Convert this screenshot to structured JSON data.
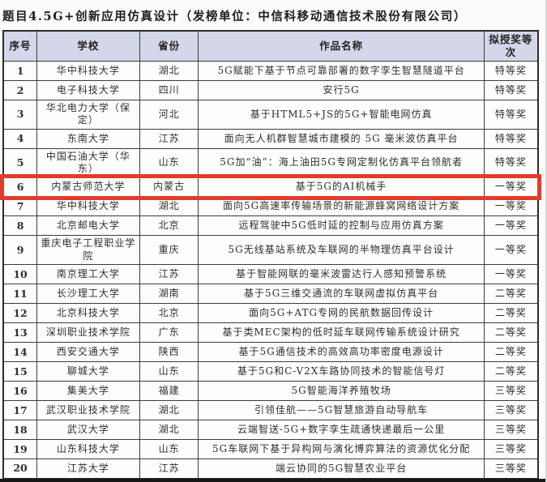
{
  "title": "题目4.5G+创新应用仿真设计（发榜单位：中信科移动通信技术股份有限公司）",
  "colors": {
    "header_bg": "#d3d7e9",
    "highlight_box": "#e23b2a"
  },
  "table": {
    "headers": [
      "序号",
      "学校",
      "省份",
      "作品名称",
      "拟授奖等次"
    ],
    "highlighted_row_no": "6",
    "rows": [
      {
        "no": "1",
        "school": "华中科技大学",
        "province": "湖北",
        "work": "5G赋能下基于节点可靠部署的数字孪生智慧隧道平台",
        "award": "特等奖",
        "highlighted": false
      },
      {
        "no": "2",
        "school": "电子科技大学",
        "province": "四川",
        "work": "安行5G",
        "award": "特等奖",
        "highlighted": false
      },
      {
        "no": "3",
        "school": "华北电力大学（保定）",
        "province": "河北",
        "work": "基于HTML5+JS的5G+智能电网仿真",
        "award": "特等奖",
        "highlighted": false
      },
      {
        "no": "4",
        "school": "东南大学",
        "province": "江苏",
        "work": "面向无人机群智慧城市建模的 5G 毫米波仿真平台",
        "award": "特等奖",
        "highlighted": false
      },
      {
        "no": "5",
        "school": "中国石油大学（华东）",
        "province": "山东",
        "work": "5G加“油”：海上油田5G专网定制化仿真平台领航者",
        "award": "特等奖",
        "highlighted": false
      },
      {
        "no": "6",
        "school": "内蒙古师范大学",
        "province": "内蒙古",
        "work": "基于5G的AI机械手",
        "award": "一等奖",
        "highlighted": true
      },
      {
        "no": "7",
        "school": "华中科技大学",
        "province": "湖北",
        "work": "面向5G高速率传输场景的新能源蜂窝网络设计方案",
        "award": "一等奖",
        "highlighted": false
      },
      {
        "no": "8",
        "school": "北京邮电大学",
        "province": "北京",
        "work": "远程驾驶中5G低时延的控制与应用仿真方案",
        "award": "一等奖",
        "highlighted": false
      },
      {
        "no": "9",
        "school": "重庆电子工程职业学院",
        "province": "重庆",
        "work": "5G无线基站系统及车联网的半物理仿真平台设计",
        "award": "一等奖",
        "highlighted": false
      },
      {
        "no": "10",
        "school": "南京理工大学",
        "province": "江苏",
        "work": "基于智能网联的毫米波雷达行人感知预警系统",
        "award": "一等奖",
        "highlighted": false
      },
      {
        "no": "11",
        "school": "长沙理工大学",
        "province": "湖南",
        "work": "基于5G三维交通流的车联网虚拟仿真平台",
        "award": "二等奖",
        "highlighted": false
      },
      {
        "no": "12",
        "school": "北京科技大学",
        "province": "北京",
        "work": "面向5G+ATG专网的民航数据回传设计",
        "award": "二等奖",
        "highlighted": false
      },
      {
        "no": "13",
        "school": "深圳职业技术学院",
        "province": "广东",
        "work": "基于类MEC架构的低时延车联网传输系统设计研究",
        "award": "二等奖",
        "highlighted": false
      },
      {
        "no": "14",
        "school": "西安交通大学",
        "province": "陕西",
        "work": "基于5G通信技术的高效高功率密度电源设计",
        "award": "二等奖",
        "highlighted": false
      },
      {
        "no": "15",
        "school": "聊城大学",
        "province": "山东",
        "work": "基于5G和C-V2X车路协同技术的智能信号灯",
        "award": "二等奖",
        "highlighted": false
      },
      {
        "no": "16",
        "school": "集美大学",
        "province": "福建",
        "work": "5G智能海洋养殖牧场",
        "award": "三等奖",
        "highlighted": false
      },
      {
        "no": "17",
        "school": "武汉职业技术学院",
        "province": "湖北",
        "work": "引领佳航——5G智慧旅游自动导航车",
        "award": "三等奖",
        "highlighted": false
      },
      {
        "no": "18",
        "school": "武汉大学",
        "province": "湖北",
        "work": "云端智送-5G+数字孪生疏通快递最后一公里",
        "award": "三等奖",
        "highlighted": false
      },
      {
        "no": "19",
        "school": "山东科技大学",
        "province": "山东",
        "work": "5G车联网下基于异构网与演化博弈算法的资源优化分配",
        "award": "三等奖",
        "highlighted": false
      },
      {
        "no": "20",
        "school": "江苏大学",
        "province": "江苏",
        "work": "端云协同的5G智慧农业平台",
        "award": "三等奖",
        "highlighted": false
      }
    ]
  }
}
